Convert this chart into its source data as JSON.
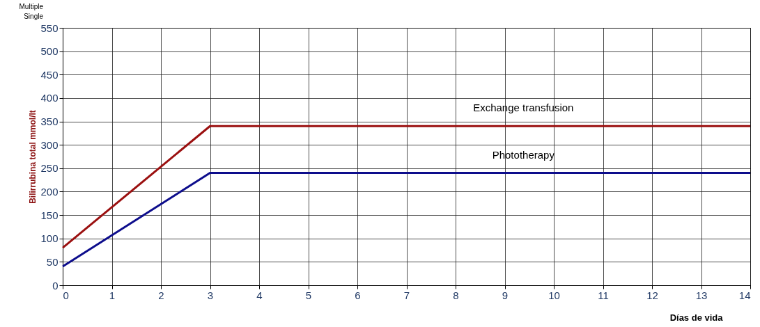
{
  "chart_data": {
    "type": "line",
    "xlabel": "Días de vida",
    "ylabel": "Bilirrubina total mmol/lt",
    "x": [
      0,
      3,
      14
    ],
    "series": [
      {
        "name": "Exchange transfusion",
        "color": "#9b1010",
        "values": [
          80,
          340,
          340
        ]
      },
      {
        "name": "Phototherapy",
        "color": "#0d0d8c",
        "values": [
          40,
          240,
          240
        ]
      }
    ],
    "xlim": [
      0,
      14
    ],
    "xticks": [
      0,
      1,
      2,
      3,
      4,
      5,
      6,
      7,
      8,
      9,
      10,
      11,
      12,
      13,
      14
    ],
    "ylim": [
      0,
      550
    ],
    "yticks": [
      0,
      50,
      100,
      150,
      200,
      250,
      300,
      350,
      400,
      450,
      500,
      550
    ],
    "grid": true,
    "legend": false,
    "marker": "none",
    "line_style": "solid",
    "annotations": [
      "Multiple",
      "Single"
    ]
  }
}
